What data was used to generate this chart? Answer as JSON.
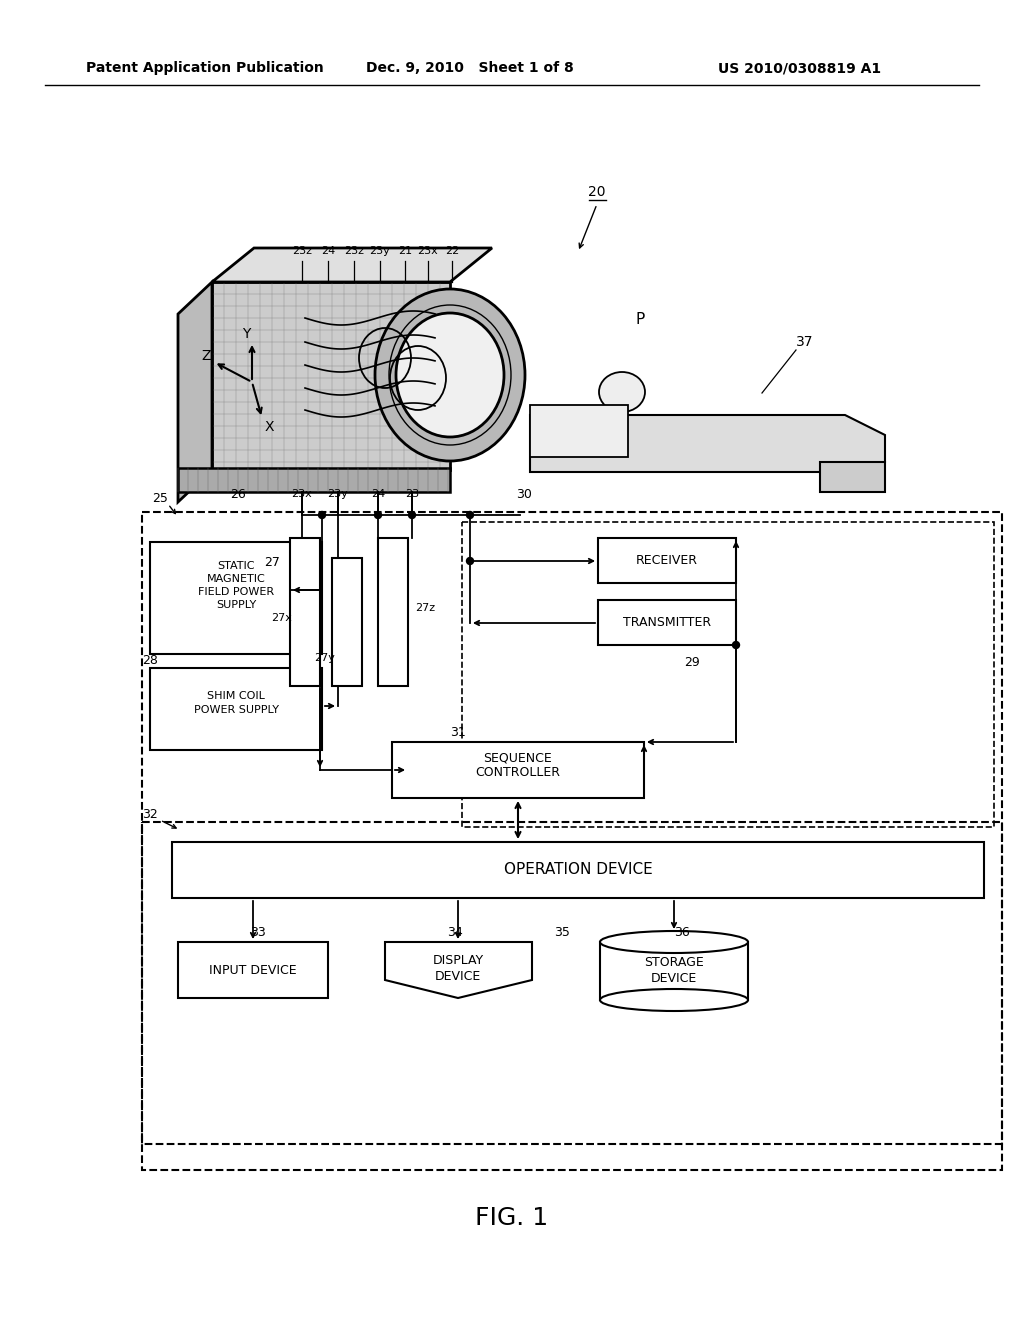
{
  "background_color": "#ffffff",
  "header_left": "Patent Application Publication",
  "header_mid": "Dec. 9, 2010   Sheet 1 of 8",
  "header_right": "US 2010/0308819 A1",
  "footer": "FIG. 1",
  "fig_width": 10.24,
  "fig_height": 13.2
}
